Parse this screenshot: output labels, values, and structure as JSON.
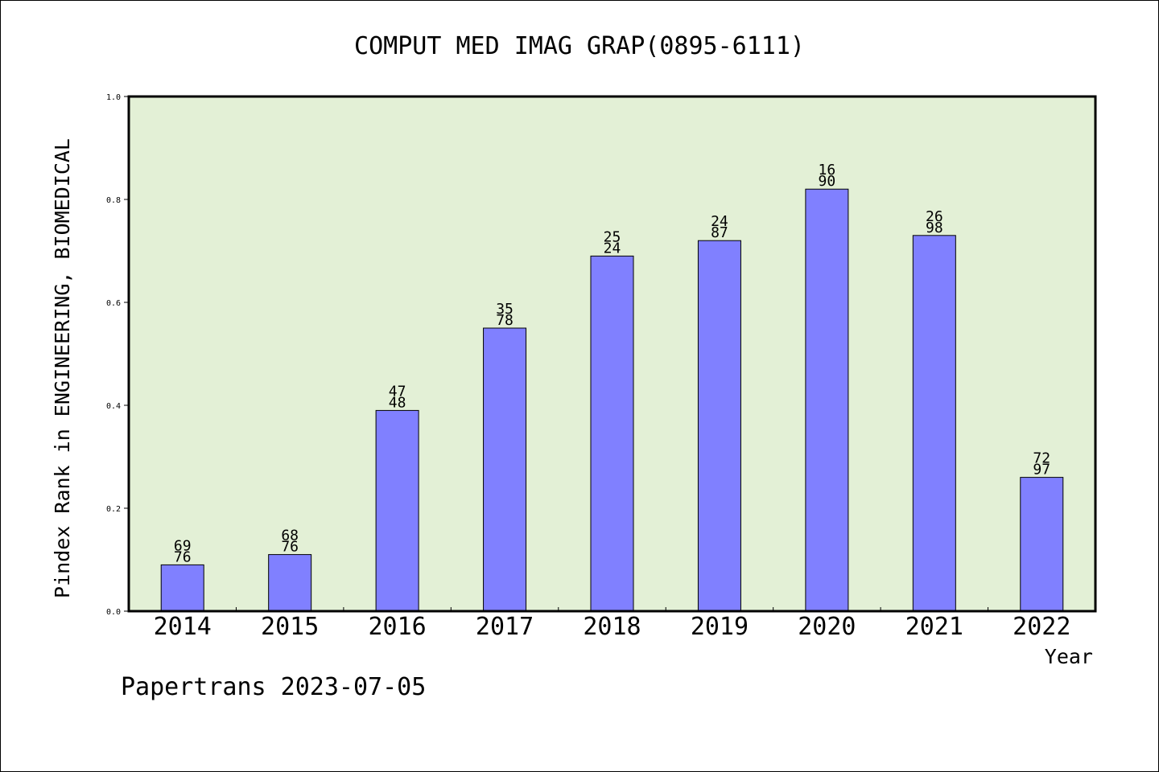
{
  "chart_data": {
    "type": "bar",
    "title": "COMPUT MED IMAG GRAP(0895-6111)",
    "xlabel": "Year",
    "ylabel": "Pindex Rank in ENGINEERING, BIOMEDICAL",
    "categories": [
      "2014",
      "2015",
      "2016",
      "2017",
      "2018",
      "2019",
      "2020",
      "2021",
      "2022"
    ],
    "values": [
      0.09,
      0.11,
      0.39,
      0.55,
      0.69,
      0.72,
      0.82,
      0.73,
      0.26
    ],
    "bar_labels": [
      [
        "69",
        "76"
      ],
      [
        "68",
        "76"
      ],
      [
        "47",
        "48"
      ],
      [
        "35",
        "78"
      ],
      [
        "25",
        "24"
      ],
      [
        "24",
        "87"
      ],
      [
        "16",
        "90"
      ],
      [
        "26",
        "98"
      ],
      [
        "72",
        "97"
      ]
    ],
    "ylim": [
      0,
      1.0
    ],
    "yticks": [
      "0.0",
      "0.2",
      "0.4",
      "0.6",
      "0.8",
      "1.0"
    ],
    "grid": false,
    "legend": "none",
    "colors": {
      "plot_background": "#e3f0d6",
      "bar_fill": "#8080ff",
      "bar_stroke": "#000000"
    }
  },
  "footer": {
    "credit": "Papertrans 2023-07-05"
  }
}
